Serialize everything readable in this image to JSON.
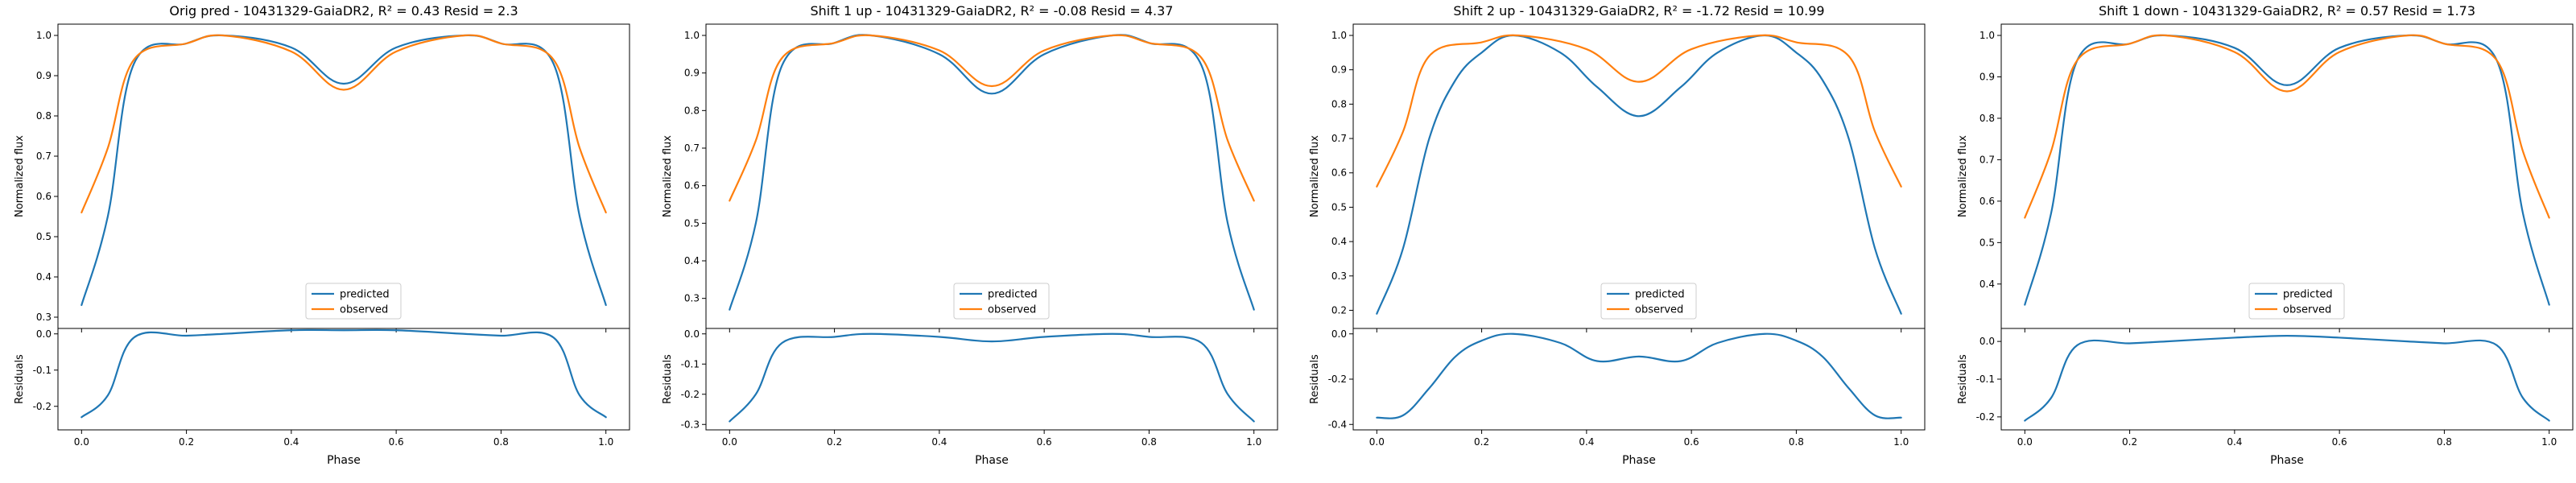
{
  "chart_data": [
    {
      "type": "line",
      "title": "Orig pred - 10431329-GaiaDR2, $R^2 = 0.43$ Resid = 2.3",
      "title_plain": "Orig pred - 10431329-GaiaDR2, R² = 0.43 Resid = 2.3",
      "ylabel": "Normalized flux",
      "resid_ylabel": "Residuals",
      "xlabel": "Phase",
      "xlim": [
        0,
        1
      ],
      "xticks": [
        "0.0",
        "0.2",
        "0.4",
        "0.6",
        "0.8",
        "1.0"
      ],
      "ylim": [
        0.3,
        1.0
      ],
      "yticks": [
        "0.3",
        "0.4",
        "0.5",
        "0.6",
        "0.7",
        "0.8",
        "0.9",
        "1.0"
      ],
      "resid_ylim": [
        -0.25,
        0.0
      ],
      "resid_yticks": [
        "0.0",
        "-0.1",
        "-0.2"
      ],
      "legend": "bottom-center",
      "series": [
        {
          "name": "predicted",
          "color": "#1f77b4",
          "x": [
            0,
            0.05,
            0.1,
            0.2,
            0.27,
            0.4,
            0.5,
            0.6,
            0.73,
            0.8,
            0.9,
            0.95,
            1.0
          ],
          "values": [
            0.33,
            0.55,
            0.93,
            0.98,
            1.0,
            0.97,
            0.88,
            0.97,
            1.0,
            0.98,
            0.93,
            0.55,
            0.33
          ]
        },
        {
          "name": "observed",
          "color": "#ff7f0e",
          "x": [
            0,
            0.05,
            0.1,
            0.2,
            0.27,
            0.4,
            0.5,
            0.6,
            0.73,
            0.8,
            0.9,
            0.95,
            1.0
          ],
          "values": [
            0.56,
            0.72,
            0.94,
            0.98,
            1.0,
            0.96,
            0.865,
            0.96,
            1.0,
            0.98,
            0.94,
            0.72,
            0.56
          ]
        },
        {
          "name": "residual",
          "color": "#1f77b4",
          "x": [
            0,
            0.05,
            0.1,
            0.2,
            0.27,
            0.4,
            0.5,
            0.6,
            0.73,
            0.8,
            0.9,
            0.95,
            1.0
          ],
          "values": [
            -0.23,
            -0.17,
            -0.01,
            -0.005,
            0.0,
            0.01,
            0.01,
            0.01,
            0.0,
            -0.005,
            -0.01,
            -0.17,
            -0.23
          ]
        }
      ]
    },
    {
      "type": "line",
      "title": "Shift 1 up - 10431329-GaiaDR2, $R^2 = $-0.08 Resid = 4.37",
      "title_plain": "Shift 1 up - 10431329-GaiaDR2, R² = -0.08 Resid = 4.37",
      "ylabel": "Normalized flux",
      "resid_ylabel": "Residuals",
      "xlabel": "Phase",
      "xlim": [
        0,
        1
      ],
      "xticks": [
        "0.0",
        "0.2",
        "0.4",
        "0.6",
        "0.8",
        "1.0"
      ],
      "ylim": [
        0.25,
        1.0
      ],
      "yticks": [
        "0.3",
        "0.4",
        "0.5",
        "0.6",
        "0.7",
        "0.8",
        "0.9",
        "1.0"
      ],
      "resid_ylim": [
        -0.3,
        0.0
      ],
      "resid_yticks": [
        "0.0",
        "-0.1",
        "-0.2",
        "-0.3"
      ],
      "legend": "bottom-center",
      "series": [
        {
          "name": "predicted",
          "color": "#1f77b4",
          "x": [
            0,
            0.05,
            0.1,
            0.2,
            0.27,
            0.4,
            0.5,
            0.6,
            0.73,
            0.8,
            0.9,
            0.95,
            1.0
          ],
          "values": [
            0.27,
            0.5,
            0.92,
            0.98,
            1.0,
            0.95,
            0.845,
            0.95,
            1.0,
            0.98,
            0.92,
            0.5,
            0.27
          ]
        },
        {
          "name": "observed",
          "color": "#ff7f0e",
          "x": [
            0,
            0.05,
            0.1,
            0.2,
            0.27,
            0.4,
            0.5,
            0.6,
            0.73,
            0.8,
            0.9,
            0.95,
            1.0
          ],
          "values": [
            0.56,
            0.72,
            0.94,
            0.98,
            1.0,
            0.96,
            0.865,
            0.96,
            1.0,
            0.98,
            0.94,
            0.72,
            0.56
          ]
        },
        {
          "name": "residual",
          "color": "#1f77b4",
          "x": [
            0,
            0.05,
            0.1,
            0.2,
            0.27,
            0.4,
            0.5,
            0.6,
            0.73,
            0.8,
            0.9,
            0.95,
            1.0
          ],
          "values": [
            -0.29,
            -0.2,
            -0.03,
            -0.01,
            0.0,
            -0.01,
            -0.025,
            -0.01,
            0.0,
            -0.01,
            -0.03,
            -0.2,
            -0.29
          ]
        }
      ]
    },
    {
      "type": "line",
      "title": "Shift 2 up - 10431329-GaiaDR2, $R^2 = $-1.72 Resid = 10.99",
      "title_plain": "Shift 2 up - 10431329-GaiaDR2, R² = -1.72 Resid = 10.99",
      "ylabel": "Normalized flux",
      "resid_ylabel": "Residuals",
      "xlabel": "Phase",
      "xlim": [
        0,
        1
      ],
      "xticks": [
        "0.0",
        "0.2",
        "0.4",
        "0.6",
        "0.8",
        "1.0"
      ],
      "ylim": [
        0.18,
        1.0
      ],
      "yticks": [
        "0.2",
        "0.3",
        "0.4",
        "0.5",
        "0.6",
        "0.7",
        "0.8",
        "0.9",
        "1.0"
      ],
      "resid_ylim": [
        -0.4,
        0.0
      ],
      "resid_yticks": [
        "0.0",
        "-0.2",
        "-0.4"
      ],
      "legend": "bottom-center",
      "series": [
        {
          "name": "predicted",
          "color": "#1f77b4",
          "x": [
            0,
            0.05,
            0.1,
            0.15,
            0.2,
            0.26,
            0.35,
            0.42,
            0.5,
            0.58,
            0.65,
            0.74,
            0.8,
            0.85,
            0.9,
            0.95,
            1.0
          ],
          "values": [
            0.19,
            0.38,
            0.7,
            0.87,
            0.95,
            1.0,
            0.95,
            0.85,
            0.765,
            0.85,
            0.95,
            1.0,
            0.95,
            0.87,
            0.7,
            0.38,
            0.19
          ]
        },
        {
          "name": "observed",
          "color": "#ff7f0e",
          "x": [
            0,
            0.05,
            0.1,
            0.2,
            0.27,
            0.4,
            0.5,
            0.6,
            0.73,
            0.8,
            0.9,
            0.95,
            1.0
          ],
          "values": [
            0.56,
            0.72,
            0.94,
            0.98,
            1.0,
            0.96,
            0.865,
            0.96,
            1.0,
            0.98,
            0.94,
            0.72,
            0.56
          ]
        },
        {
          "name": "residual",
          "color": "#1f77b4",
          "x": [
            0,
            0.05,
            0.1,
            0.15,
            0.2,
            0.26,
            0.35,
            0.42,
            0.5,
            0.58,
            0.65,
            0.74,
            0.8,
            0.85,
            0.9,
            0.95,
            1.0
          ],
          "values": [
            -0.37,
            -0.36,
            -0.24,
            -0.1,
            -0.03,
            0.0,
            -0.04,
            -0.12,
            -0.1,
            -0.12,
            -0.04,
            0.0,
            -0.03,
            -0.1,
            -0.24,
            -0.36,
            -0.37
          ]
        }
      ]
    },
    {
      "type": "line",
      "title": "Shift 1 down - 10431329-GaiaDR2, $R^2 = 0.57$ Resid = 1.73",
      "title_plain": "Shift 1 down - 10431329-GaiaDR2, R² = 0.57 Resid = 1.73",
      "ylabel": "Normalized flux",
      "resid_ylabel": "Residuals",
      "xlabel": "Phase",
      "xlim": [
        0,
        1
      ],
      "xticks": [
        "0.0",
        "0.2",
        "0.4",
        "0.6",
        "0.8",
        "1.0"
      ],
      "ylim": [
        0.32,
        1.0
      ],
      "yticks": [
        "0.4",
        "0.5",
        "0.6",
        "0.7",
        "0.8",
        "0.9",
        "1.0"
      ],
      "resid_ylim": [
        -0.22,
        0.02
      ],
      "resid_yticks": [
        "0.0",
        "-0.1",
        "-0.2"
      ],
      "legend": "bottom-center",
      "series": [
        {
          "name": "predicted",
          "color": "#1f77b4",
          "x": [
            0,
            0.05,
            0.1,
            0.2,
            0.27,
            0.4,
            0.5,
            0.6,
            0.73,
            0.8,
            0.9,
            0.95,
            1.0
          ],
          "values": [
            0.35,
            0.57,
            0.94,
            0.98,
            1.0,
            0.97,
            0.88,
            0.97,
            1.0,
            0.98,
            0.94,
            0.57,
            0.35
          ]
        },
        {
          "name": "observed",
          "color": "#ff7f0e",
          "x": [
            0,
            0.05,
            0.1,
            0.2,
            0.27,
            0.4,
            0.5,
            0.6,
            0.73,
            0.8,
            0.9,
            0.95,
            1.0
          ],
          "values": [
            0.56,
            0.72,
            0.94,
            0.98,
            1.0,
            0.96,
            0.865,
            0.96,
            1.0,
            0.98,
            0.94,
            0.72,
            0.56
          ]
        },
        {
          "name": "residual",
          "color": "#1f77b4",
          "x": [
            0,
            0.05,
            0.1,
            0.2,
            0.27,
            0.4,
            0.5,
            0.6,
            0.73,
            0.8,
            0.9,
            0.95,
            1.0
          ],
          "values": [
            -0.21,
            -0.15,
            -0.01,
            -0.005,
            0.0,
            0.01,
            0.015,
            0.01,
            0.0,
            -0.005,
            -0.01,
            -0.15,
            -0.21
          ]
        }
      ]
    }
  ]
}
